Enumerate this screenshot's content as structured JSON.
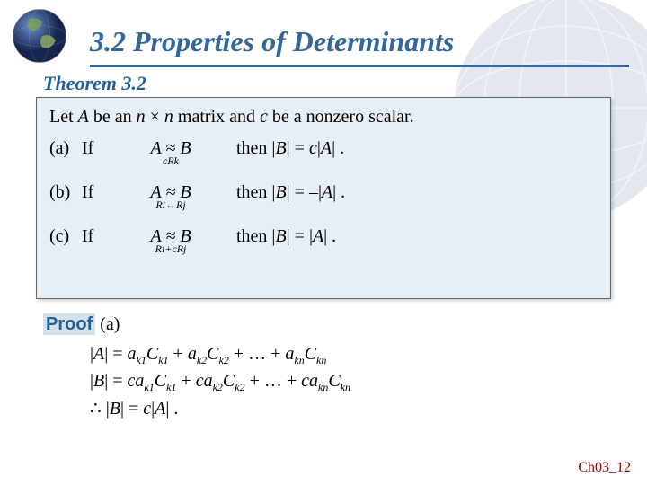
{
  "colors": {
    "title": "#336699",
    "subtitle": "#21609b",
    "proof_bg": "#d6e0ea",
    "proof_text": "#21609b",
    "theorem_bg": "#e6eef6",
    "footer": "#990000",
    "underline": "#336699",
    "globe_blue": "#2a4d8f",
    "globe_land": "#7a9b5a"
  },
  "title": "3.2 Properties of Determinants",
  "subtitle": "Theorem 3.2",
  "theorem": {
    "intro_parts": {
      "p1": "Let ",
      "A": "A",
      "p2": " be an ",
      "n1": "n",
      "times": " × ",
      "n2": "n",
      "p3": " matrix and ",
      "c": "c",
      "p4": " be a nonzero scalar."
    },
    "rows": [
      {
        "label": "(a)",
        "sub": "cRk",
        "then": "then |B| =  c|A| ."
      },
      {
        "label": "(b)",
        "sub": "Ri↔Rj",
        "then": "then |B| =  –|A| ."
      },
      {
        "label": "(c)",
        "sub": "Ri+cRj",
        "then": "then |B| =  |A| ."
      }
    ],
    "if_word": "If",
    "rel": {
      "A": "A",
      "approx": " ≈ ",
      "B": "B"
    }
  },
  "proof": {
    "label_proof": "Proof",
    "label_part": " (a)",
    "line1": "|A| = a_{k1}C_{k1} + a_{k2}C_{k2} + … + a_{kn}C_{kn}",
    "line2": "|B| = ca_{k1}C_{k1} + ca_{k2}C_{k2} + … + ca_{kn}C_{kn}",
    "line3": "∴ |B| =  c|A| ."
  },
  "footer": "Ch03_12"
}
